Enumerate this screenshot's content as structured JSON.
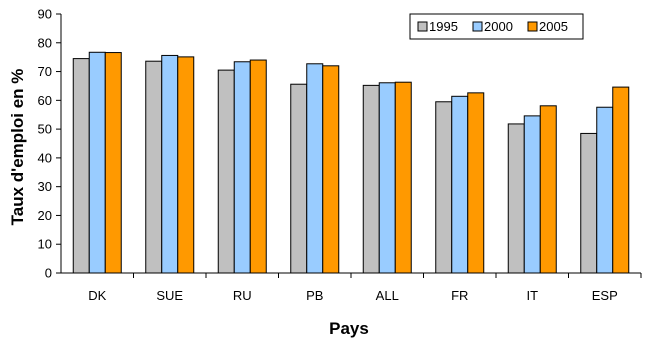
{
  "chart_data": {
    "type": "bar",
    "title": "",
    "xlabel": "Pays",
    "ylabel": "Taux d'emploi en %",
    "ylim": [
      0,
      90
    ],
    "yticks": [
      0,
      10,
      20,
      30,
      40,
      50,
      60,
      70,
      80,
      90
    ],
    "grid": false,
    "legend_position": "top-right",
    "categories": [
      "DK",
      "SUE",
      "RU",
      "PB",
      "ALL",
      "FR",
      "IT",
      "ESP"
    ],
    "series": [
      {
        "name": "1995",
        "color": "#c0c0c0",
        "values": [
          74.5,
          73.6,
          70.5,
          65.6,
          65.2,
          59.5,
          51.8,
          48.5
        ]
      },
      {
        "name": "2000",
        "color": "#99ccff",
        "values": [
          76.7,
          75.6,
          73.4,
          72.7,
          66.1,
          61.4,
          54.6,
          57.6
        ]
      },
      {
        "name": "2005",
        "color": "#ff9900",
        "values": [
          76.6,
          75.1,
          74.0,
          72.0,
          66.3,
          62.6,
          58.1,
          64.6
        ]
      }
    ]
  }
}
